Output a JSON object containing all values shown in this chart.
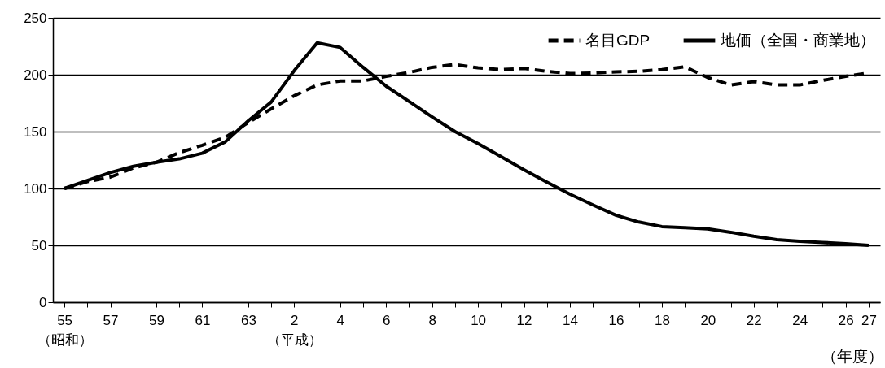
{
  "chart_data": {
    "type": "line",
    "categories": [
      "55\n（昭和）",
      null,
      "57",
      null,
      "59",
      null,
      "61",
      null,
      "63",
      null,
      "2\n（平成）",
      null,
      "4",
      null,
      "6",
      null,
      "8",
      null,
      "10",
      null,
      "12",
      null,
      "14",
      null,
      "16",
      null,
      "18",
      null,
      "20",
      null,
      "22",
      null,
      "24",
      null,
      "26",
      "27"
    ],
    "series": [
      {
        "name": "名目GDP",
        "color": "#000000",
        "line_style": "dashed",
        "values": [
          100,
          106,
          110,
          118,
          123,
          131.5,
          138,
          145,
          158,
          170,
          181.5,
          191,
          194.5,
          194.5,
          198.5,
          202,
          206.5,
          209,
          206,
          204.5,
          205.5,
          203,
          201,
          201.5,
          202.5,
          203,
          204.5,
          207,
          197.5,
          191,
          194,
          191,
          191,
          195,
          198.5,
          201.5
        ]
      },
      {
        "name": "地価（全国・商業地）",
        "color": "#000000",
        "line_style": "solid",
        "values": [
          100,
          107,
          114,
          119.5,
          123,
          126,
          131,
          141,
          159.5,
          176,
          203.5,
          228,
          224,
          206.5,
          190,
          176.5,
          163,
          150,
          139.5,
          128,
          116.5,
          105.5,
          95,
          85.5,
          76.5,
          70.5,
          66.5,
          65.5,
          64.5,
          61.5,
          58,
          55,
          53.5,
          52.5,
          51.5,
          50
        ]
      }
    ],
    "ylim": [
      0,
      250
    ],
    "yticks": [
      0,
      50,
      100,
      150,
      200,
      250
    ],
    "grid": "y",
    "legend": "top right",
    "marker": "none",
    "annotations": [
      "（年度）"
    ]
  }
}
